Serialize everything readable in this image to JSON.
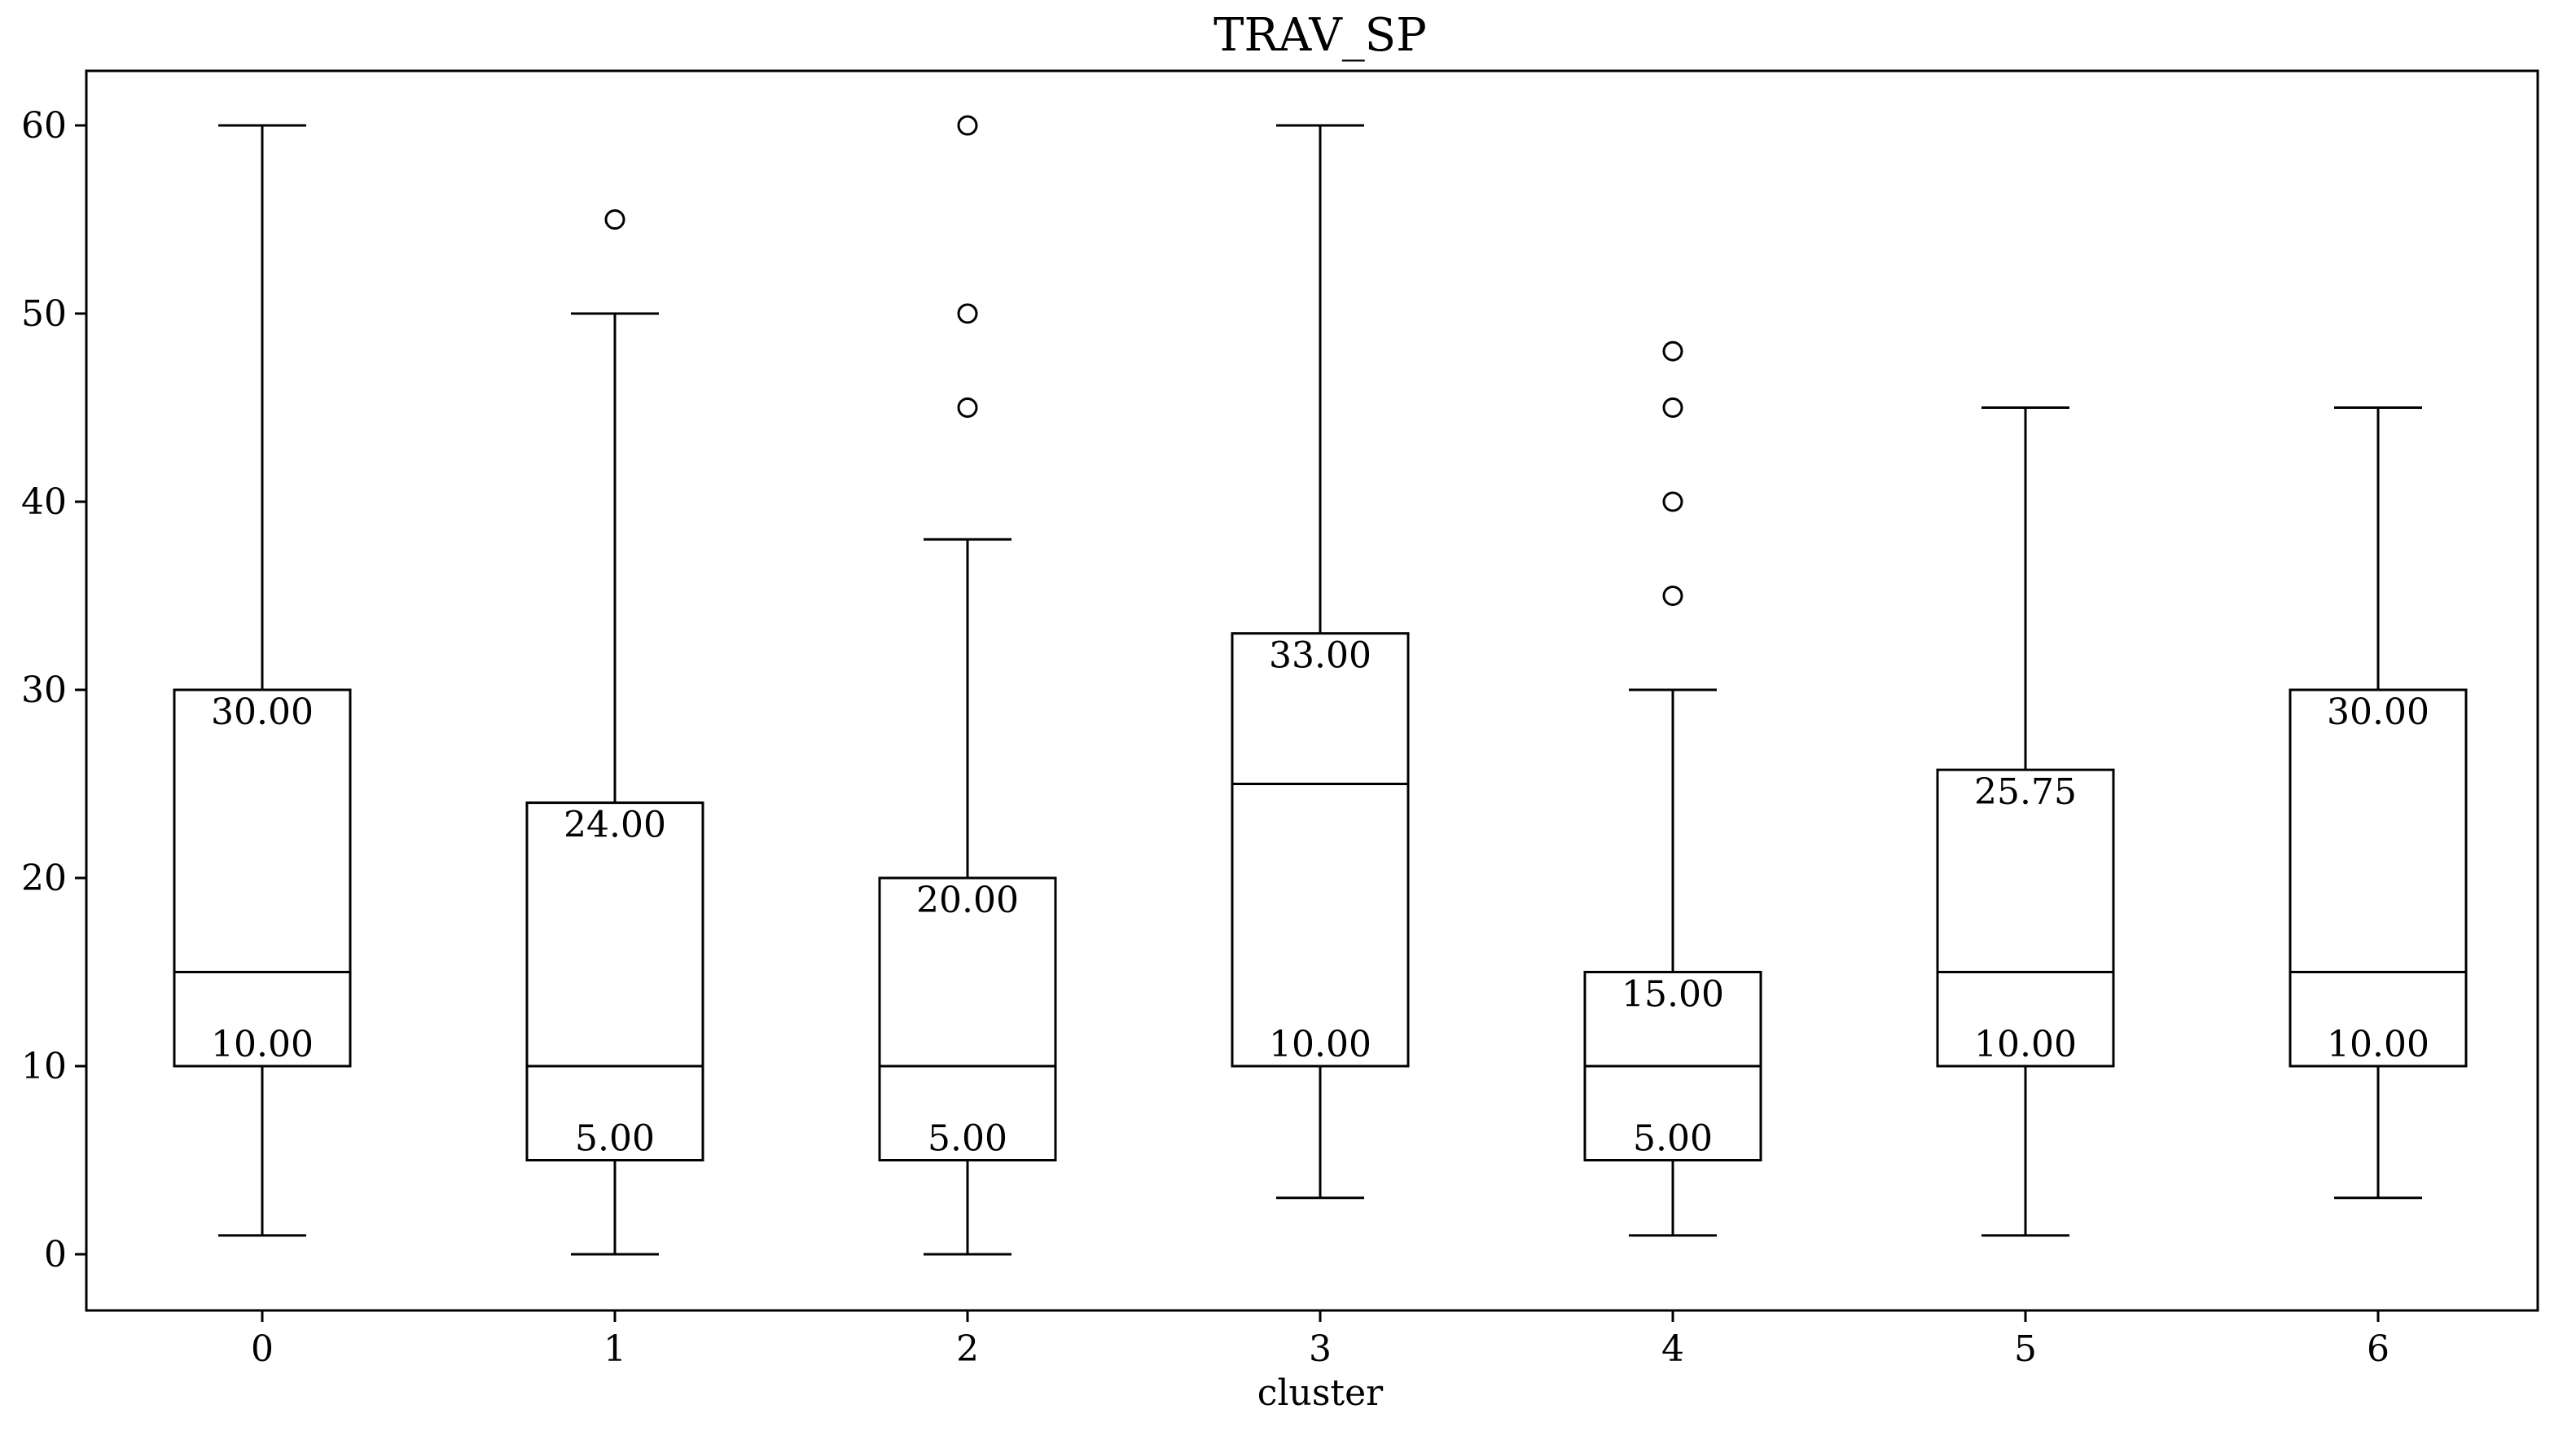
{
  "chart_data": {
    "type": "box",
    "title": "TRAV_SP",
    "xlabel": "cluster",
    "ylabel": "",
    "ylim": [
      -3,
      63
    ],
    "yticks": [
      0,
      10,
      20,
      30,
      40,
      50,
      60
    ],
    "ytick_labels": [
      "0",
      "10",
      "20",
      "30",
      "40",
      "50",
      "60"
    ],
    "grid": false,
    "legend": "none",
    "colors": {
      "stroke": "#000000",
      "background": "#ffffff"
    },
    "categories": [
      "0",
      "1",
      "2",
      "3",
      "4",
      "5",
      "6"
    ],
    "boxes": [
      {
        "category": "0",
        "whisker_low": 1,
        "q1": 10,
        "median": 15,
        "q3": 30,
        "whisker_high": 60,
        "outliers": [],
        "q1_label": "10.00",
        "q3_label": "30.00"
      },
      {
        "category": "1",
        "whisker_low": 0,
        "q1": 5,
        "median": 10,
        "q3": 24,
        "whisker_high": 50,
        "outliers": [
          55
        ],
        "q1_label": "5.00",
        "q3_label": "24.00"
      },
      {
        "category": "2",
        "whisker_low": 0,
        "q1": 5,
        "median": 10,
        "q3": 20,
        "whisker_high": 38,
        "outliers": [
          45,
          50,
          60
        ],
        "q1_label": "5.00",
        "q3_label": "20.00"
      },
      {
        "category": "3",
        "whisker_low": 3,
        "q1": 10,
        "median": 25,
        "q3": 33,
        "whisker_high": 60,
        "outliers": [],
        "q1_label": "10.00",
        "q3_label": "33.00"
      },
      {
        "category": "4",
        "whisker_low": 1,
        "q1": 5,
        "median": 10,
        "q3": 15,
        "whisker_high": 30,
        "outliers": [
          35,
          40,
          45,
          48
        ],
        "q1_label": "5.00",
        "q3_label": "15.00"
      },
      {
        "category": "5",
        "whisker_low": 1,
        "q1": 10,
        "median": 15,
        "q3": 25.75,
        "whisker_high": 45,
        "outliers": [],
        "q1_label": "10.00",
        "q3_label": "25.75"
      },
      {
        "category": "6",
        "whisker_low": 3,
        "q1": 10,
        "median": 15,
        "q3": 30,
        "whisker_high": 45,
        "outliers": [],
        "q1_label": "10.00",
        "q3_label": "30.00"
      }
    ]
  }
}
